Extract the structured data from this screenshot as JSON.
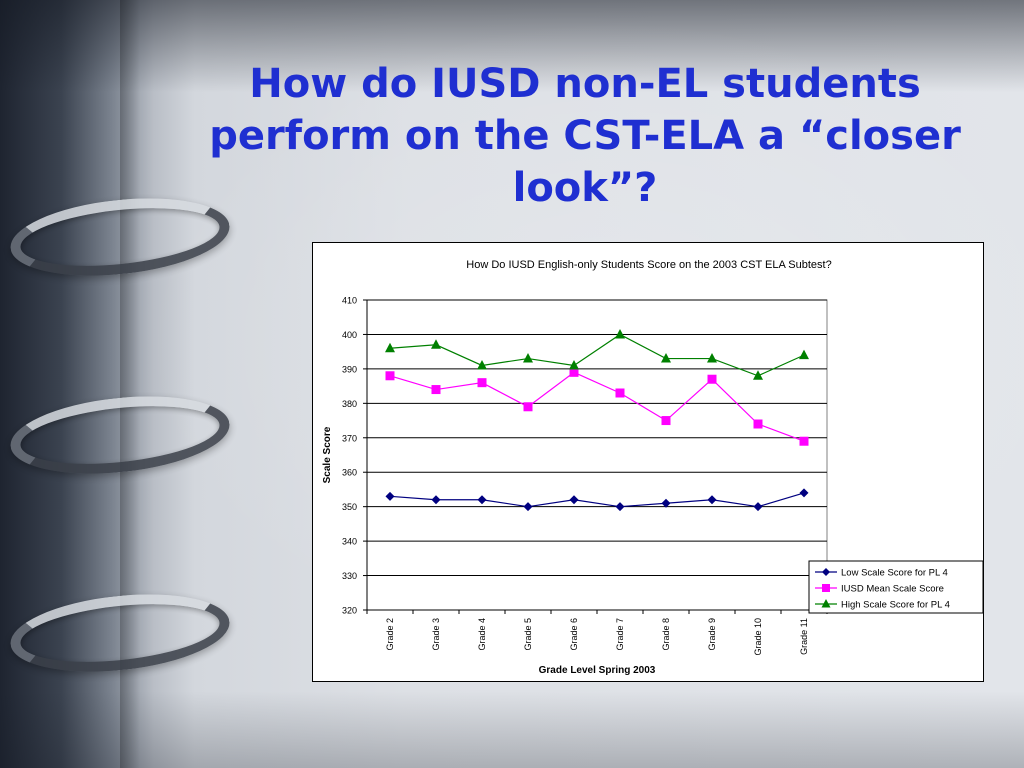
{
  "slide": {
    "title": "How do IUSD non-EL students perform on the CST-ELA a “closer look”?"
  },
  "chart_data": {
    "type": "line",
    "title": "How Do IUSD English-only Students Score on the 2003 CST ELA Subtest?",
    "xlabel": "Grade Level Spring 2003",
    "ylabel": "Scale Score",
    "categories": [
      "Grade 2",
      "Grade 3",
      "Grade 4",
      "Grade 5",
      "Grade 6",
      "Grade 7",
      "Grade 8",
      "Grade 9",
      "Grade 10",
      "Grade 11"
    ],
    "ylim": [
      320,
      410
    ],
    "ytick_step": 10,
    "grid": true,
    "legend_position": "bottom-right",
    "series": [
      {
        "name": "Low Scale Score for PL 4",
        "color": "#000080",
        "marker": "diamond",
        "values": [
          353,
          352,
          352,
          350,
          352,
          350,
          351,
          352,
          350,
          354
        ]
      },
      {
        "name": "IUSD Mean Scale Score",
        "color": "#ff00ff",
        "marker": "square",
        "values": [
          388,
          384,
          386,
          379,
          389,
          383,
          375,
          387,
          374,
          369
        ]
      },
      {
        "name": "High Scale Score for PL 4",
        "color": "#008000",
        "marker": "triangle",
        "values": [
          396,
          397,
          391,
          393,
          391,
          400,
          393,
          393,
          388,
          394
        ]
      }
    ]
  }
}
